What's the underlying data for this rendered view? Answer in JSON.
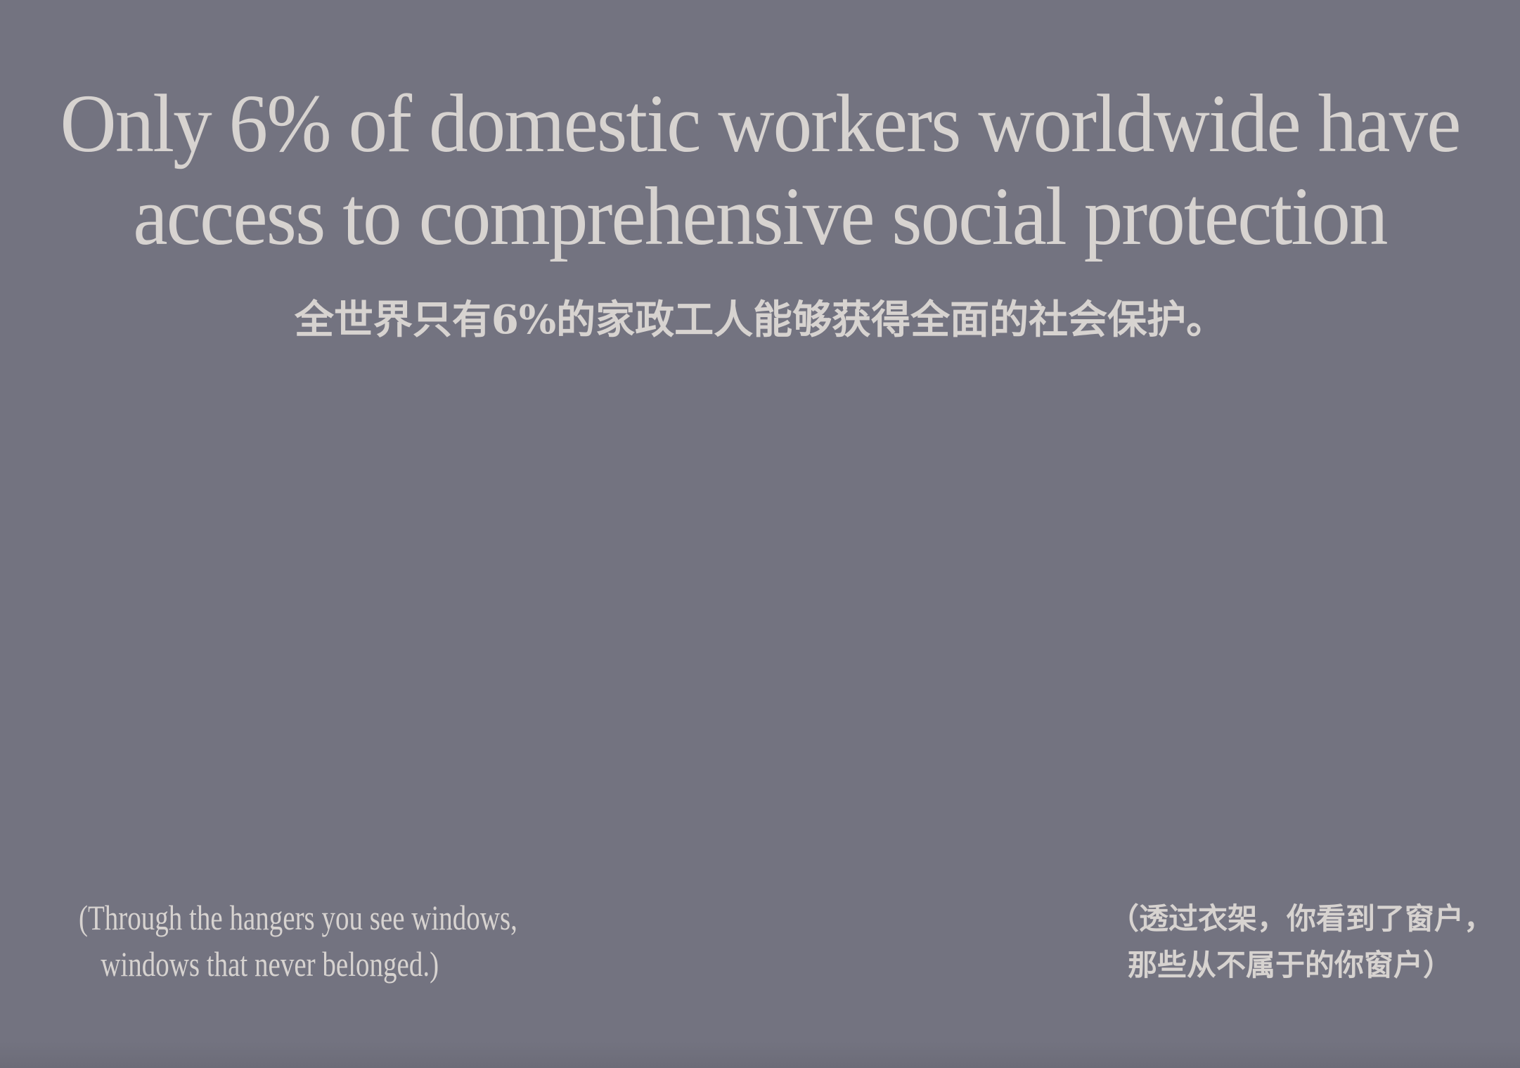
{
  "headline": {
    "line1": "Only 6% of domestic workers worldwide have",
    "line2": "access to comprehensive social protection"
  },
  "subtitle_zh": "全世界只有6%的家政工人能够获得全面的社会保护。",
  "caption_en": {
    "line1": "(Through the hangers you see windows,",
    "line2": "windows that never belonged.)"
  },
  "caption_zh": {
    "line1": "（透过衣架，你看到了窗户，",
    "line2": "那些从不属于的你窗户）"
  },
  "colors": {
    "background": "#737380",
    "text": "#d7d3d0"
  }
}
